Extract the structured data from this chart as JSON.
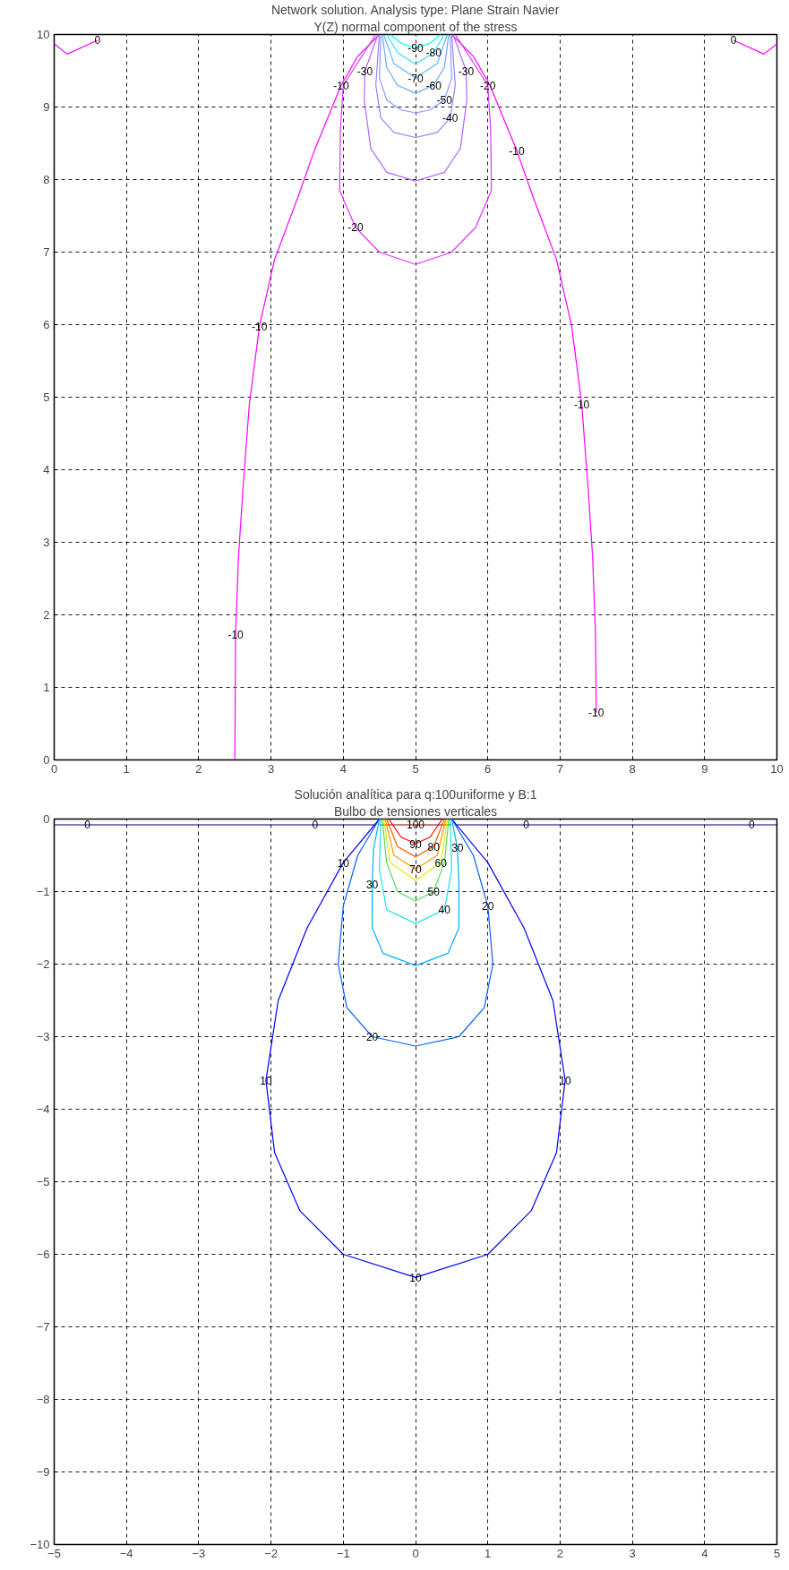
{
  "chart_data": [
    {
      "type": "line",
      "title": "Network solution. Analysis type: Plane Strain Navier",
      "subtitle": "Y(Z) normal component of the stress",
      "xlim": [
        0,
        10
      ],
      "ylim": [
        0,
        10
      ],
      "xticks": [
        0,
        1,
        2,
        3,
        4,
        5,
        6,
        7,
        8,
        9,
        10
      ],
      "yticks": [
        0,
        1,
        2,
        3,
        4,
        5,
        6,
        7,
        8,
        9,
        10
      ],
      "grid": true,
      "line_style": "solid",
      "marker": "none",
      "series": [
        {
          "color": "#ff00ff",
          "x": [
            0,
            0.18,
            0.6,
            5,
            9.4,
            9.82,
            10
          ],
          "values": [
            9.87,
            9.73,
            9.92,
            null,
            9.92,
            9.73,
            9.87
          ]
        },
        {
          "color": "#ff00ff",
          "x": [
            2.5,
            2.51,
            2.55,
            2.61,
            2.7,
            2.84,
            3.05,
            3.37,
            3.6,
            3.97,
            4.2,
            4.5,
            5.0,
            5.5,
            5.8,
            6.03,
            6.4,
            6.63,
            6.95,
            7.16,
            7.3,
            7.39,
            7.45,
            7.49,
            7.5
          ],
          "values": [
            0,
            1.73,
            2.8,
            3.71,
            4.9,
            5.98,
            6.9,
            7.75,
            8.4,
            9.3,
            9.7,
            10,
            null,
            10,
            9.7,
            9.3,
            8.4,
            7.75,
            6.9,
            5.98,
            4.9,
            3.71,
            2.8,
            1.73,
            0.65
          ]
        },
        {
          "color": "#dd33ff",
          "x": [
            4.45,
            4.0,
            3.96,
            3.95,
            4.17,
            4.5,
            5,
            5.5,
            5.83,
            6.05,
            6.04,
            6.0,
            5.55
          ],
          "values": [
            10,
            9.3,
            8.68,
            7.85,
            7.34,
            7.0,
            6.83,
            7.0,
            7.34,
            7.85,
            8.68,
            9.3,
            10
          ]
        },
        {
          "color": "#b366ff",
          "x": [
            4.48,
            4.3,
            4.29,
            4.38,
            4.6,
            5,
            5.4,
            5.62,
            5.71,
            5.7,
            5.52
          ],
          "values": [
            10,
            9.5,
            9.1,
            8.43,
            8.1,
            7.98,
            8.1,
            8.43,
            9.1,
            9.5,
            10
          ]
        },
        {
          "color": "#9a80ff",
          "x": [
            4.5,
            4.45,
            4.52,
            4.7,
            5,
            5.3,
            5.48,
            5.55,
            5.5
          ],
          "values": [
            10,
            9.3,
            8.85,
            8.65,
            8.58,
            8.65,
            8.85,
            9.3,
            10
          ]
        },
        {
          "color": "#8899ff",
          "x": [
            4.52,
            4.5,
            4.6,
            4.8,
            5,
            5.2,
            5.4,
            5.5,
            5.48
          ],
          "values": [
            10,
            9.4,
            9.1,
            8.96,
            8.92,
            8.96,
            9.1,
            9.4,
            10
          ]
        },
        {
          "color": "#66aaff",
          "x": [
            4.54,
            4.6,
            4.75,
            5,
            5.25,
            5.4,
            5.46
          ],
          "values": [
            10,
            9.55,
            9.3,
            9.19,
            9.3,
            9.55,
            10
          ]
        },
        {
          "color": "#55bbff",
          "x": [
            4.56,
            4.7,
            5,
            5.3,
            5.44
          ],
          "values": [
            10,
            9.6,
            9.4,
            9.6,
            10
          ]
        },
        {
          "color": "#33ddff",
          "x": [
            4.6,
            4.75,
            5,
            5.25,
            5.4
          ],
          "values": [
            10,
            9.75,
            9.59,
            9.75,
            10
          ]
        },
        {
          "color": "#00ffff",
          "x": [
            4.65,
            4.8,
            5,
            5.2,
            5.35
          ],
          "values": [
            10,
            9.88,
            9.81,
            9.88,
            10
          ]
        }
      ],
      "annotations": [
        {
          "text": "0",
          "x": 0.6,
          "y": 9.92
        },
        {
          "text": "0",
          "x": 9.4,
          "y": 9.92
        },
        {
          "text": "-10",
          "x": 3.97,
          "y": 9.3
        },
        {
          "text": "-10",
          "x": 6.4,
          "y": 8.4
        },
        {
          "text": "-10",
          "x": 2.84,
          "y": 5.98
        },
        {
          "text": "-10",
          "x": 7.3,
          "y": 4.9
        },
        {
          "text": "-10",
          "x": 2.51,
          "y": 1.73
        },
        {
          "text": "-10",
          "x": 7.5,
          "y": 0.65
        },
        {
          "text": "-20",
          "x": 4.17,
          "y": 7.34
        },
        {
          "text": "-20",
          "x": 6.0,
          "y": 9.3
        },
        {
          "text": "-30",
          "x": 4.3,
          "y": 9.5
        },
        {
          "text": "-30",
          "x": 5.7,
          "y": 9.5
        },
        {
          "text": "-90",
          "x": 5,
          "y": 9.81
        },
        {
          "text": "-80",
          "x": 5.25,
          "y": 9.75
        },
        {
          "text": "-70",
          "x": 5,
          "y": 9.4
        },
        {
          "text": "-60",
          "x": 5.25,
          "y": 9.3
        },
        {
          "text": "-50",
          "x": 5.4,
          "y": 9.1
        },
        {
          "text": "-40",
          "x": 5.48,
          "y": 8.85
        }
      ]
    },
    {
      "type": "line",
      "title": "Solución analítica para q:100uniforme y B:1",
      "subtitle": "Bulbo de tensiones verticales",
      "xlim": [
        -5,
        5
      ],
      "ylim": [
        -10,
        0
      ],
      "xticks": [
        -5,
        -4,
        -3,
        -2,
        -1,
        0,
        1,
        2,
        3,
        4,
        5
      ],
      "yticks": [
        -10,
        -9,
        -8,
        -7,
        -6,
        -5,
        -4,
        -3,
        -2,
        -1,
        0
      ],
      "grid": true,
      "line_style": "solid",
      "marker": "none",
      "series": [
        {
          "color": "#000080",
          "x": [
            -5,
            -4.54,
            -1.39,
            -0.55,
            0,
            0.55,
            1.53,
            4.65,
            5
          ],
          "values": [
            -0.08,
            -0.08,
            -0.08,
            -0.08,
            null,
            -0.08,
            -0.08,
            -0.08,
            -0.08
          ]
        },
        {
          "color": "#800000",
          "x": [
            -0.5,
            0,
            0.5
          ],
          "values": [
            -0.08,
            -0.08,
            -0.08
          ]
        },
        {
          "color": "#0000ff",
          "x": [
            -0.5,
            -1.0,
            -1.5,
            -1.9,
            -2.07,
            -1.95,
            -1.6,
            -1.0,
            0,
            1.0,
            1.6,
            1.95,
            2.07,
            1.9,
            1.5,
            1.0,
            0.5
          ],
          "values": [
            0,
            -0.6,
            -1.5,
            -2.5,
            -3.6,
            -4.6,
            -5.4,
            -6.0,
            -6.32,
            -6.0,
            -5.4,
            -4.6,
            -3.6,
            -2.5,
            -1.5,
            -0.6,
            0
          ]
        },
        {
          "color": "#0060ff",
          "x": [
            -0.5,
            -0.8,
            -1.0,
            -1.07,
            -0.95,
            -0.6,
            0,
            0.6,
            0.95,
            1.07,
            1.0,
            0.8,
            0.5
          ],
          "values": [
            0,
            -0.5,
            -1.2,
            -2.0,
            -2.6,
            -3.0,
            -3.13,
            -3.0,
            -2.6,
            -2.0,
            -1.2,
            -0.5,
            0
          ]
        },
        {
          "color": "#00b0ff",
          "x": [
            -0.5,
            -0.58,
            -0.6,
            -0.6,
            -0.45,
            0,
            0.45,
            0.6,
            0.6,
            0.58,
            0.5
          ],
          "values": [
            0,
            -0.4,
            -0.9,
            -1.5,
            -1.85,
            -2.02,
            -1.85,
            -1.5,
            -0.9,
            -0.4,
            0
          ]
        },
        {
          "color": "#20e0e0",
          "x": [
            -0.48,
            -0.5,
            -0.4,
            0,
            0.4,
            0.5,
            0.48
          ],
          "values": [
            0,
            -0.7,
            -1.25,
            -1.44,
            -1.25,
            -0.7,
            0
          ]
        },
        {
          "color": "#50e050",
          "x": [
            -0.46,
            -0.4,
            -0.25,
            0,
            0.25,
            0.4,
            0.46
          ],
          "values": [
            0,
            -0.6,
            -1.0,
            -1.13,
            -1.0,
            -0.6,
            0
          ]
        },
        {
          "color": "#e8e800",
          "x": [
            -0.44,
            -0.35,
            0,
            0.35,
            0.44
          ],
          "values": [
            0,
            -0.6,
            -0.85,
            -0.6,
            0
          ]
        },
        {
          "color": "#ff9900",
          "x": [
            -0.42,
            -0.3,
            0,
            0.3,
            0.42
          ],
          "values": [
            0,
            -0.5,
            -0.69,
            -0.5,
            0
          ]
        },
        {
          "color": "#ff6000",
          "x": [
            -0.4,
            -0.25,
            0,
            0.25,
            0.4
          ],
          "values": [
            0,
            -0.38,
            -0.52,
            -0.38,
            0
          ]
        },
        {
          "color": "#ff0000",
          "x": [
            -0.37,
            -0.2,
            0,
            0.2,
            0.37
          ],
          "values": [
            0,
            -0.25,
            -0.34,
            -0.25,
            0
          ]
        }
      ],
      "annotations": [
        {
          "text": "0",
          "x": -4.54,
          "y": -0.08
        },
        {
          "text": "0",
          "x": -1.39,
          "y": -0.08
        },
        {
          "text": "0",
          "x": 1.53,
          "y": -0.08
        },
        {
          "text": "0",
          "x": 4.65,
          "y": -0.08
        },
        {
          "text": "100",
          "x": 0,
          "y": -0.08
        },
        {
          "text": "10",
          "x": -1.0,
          "y": -0.6
        },
        {
          "text": "10",
          "x": -2.07,
          "y": -3.6
        },
        {
          "text": "10",
          "x": 2.07,
          "y": -3.6
        },
        {
          "text": "10",
          "x": 0,
          "y": -6.32
        },
        {
          "text": "20",
          "x": -0.6,
          "y": -3.0
        },
        {
          "text": "20",
          "x": 1.0,
          "y": -1.2
        },
        {
          "text": "30",
          "x": -0.6,
          "y": -0.9
        },
        {
          "text": "30",
          "x": 0.58,
          "y": -0.4
        },
        {
          "text": "90",
          "x": 0,
          "y": -0.34
        },
        {
          "text": "80",
          "x": 0.25,
          "y": -0.38
        },
        {
          "text": "70",
          "x": 0,
          "y": -0.69
        },
        {
          "text": "60",
          "x": 0.35,
          "y": -0.6
        },
        {
          "text": "50",
          "x": 0.25,
          "y": -1.0
        },
        {
          "text": "40",
          "x": 0.4,
          "y": -1.25
        }
      ]
    }
  ]
}
